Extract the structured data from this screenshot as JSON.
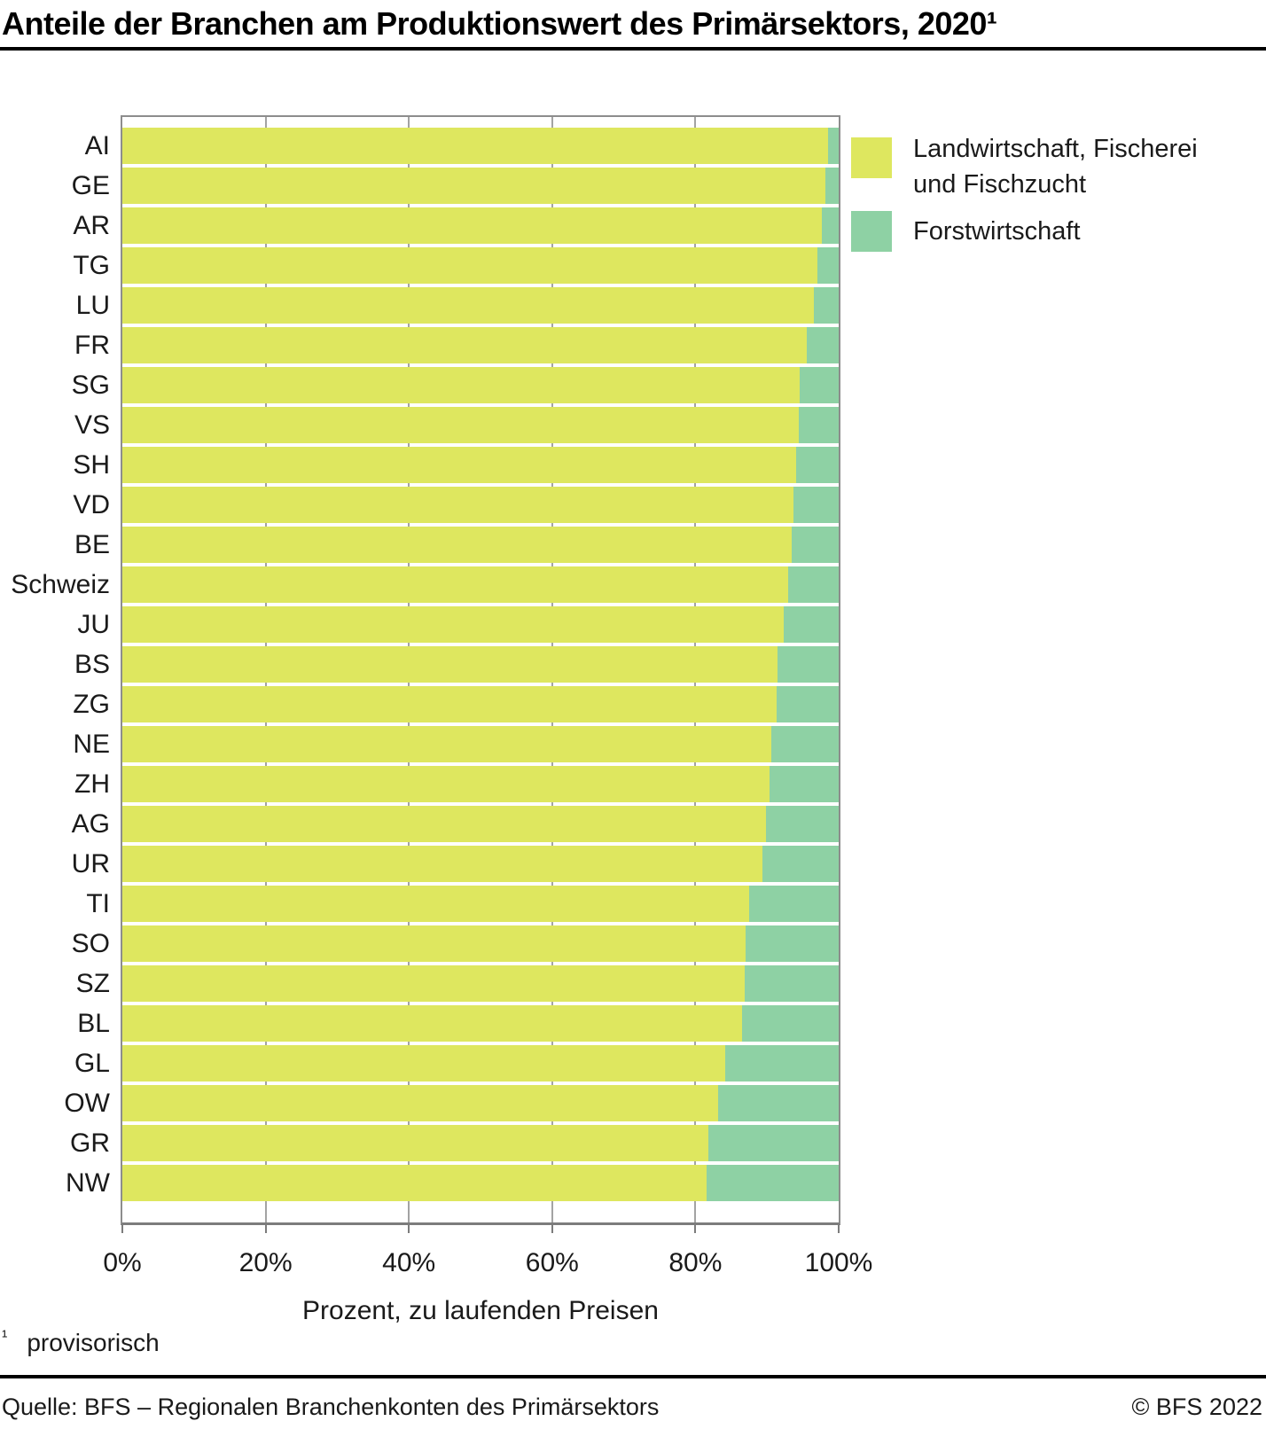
{
  "header": {
    "title": "Anteile der Branchen am Produktionswert des Primärsektors, 2020¹"
  },
  "chart_data": {
    "type": "bar",
    "orientation": "horizontal",
    "stacked": true,
    "unit": "percent",
    "title": "Anteile der Branchen am Produktionswert des Primärsektors, 2020¹",
    "xlabel": "Prozent, zu laufenden Preisen",
    "xlim": [
      0,
      100
    ],
    "grid": true,
    "legend_position": "top-right",
    "categories": [
      "AI",
      "GE",
      "AR",
      "TG",
      "LU",
      "FR",
      "SG",
      "VS",
      "SH",
      "VD",
      "BE",
      "Schweiz",
      "JU",
      "BS",
      "ZG",
      "NE",
      "ZH",
      "AG",
      "UR",
      "TI",
      "SO",
      "SZ",
      "BL",
      "GL",
      "OW",
      "GR",
      "NW"
    ],
    "series": [
      {
        "name": "Landwirtschaft, Fischerei und Fischzucht",
        "color": "#dee75f",
        "values": [
          98.5,
          98.2,
          97.7,
          97.0,
          96.5,
          95.6,
          94.5,
          94.4,
          94.1,
          93.7,
          93.4,
          92.9,
          92.3,
          91.4,
          91.3,
          90.6,
          90.3,
          89.9,
          89.3,
          87.5,
          87.0,
          86.9,
          86.5,
          84.1,
          83.2,
          81.8,
          81.6
        ]
      },
      {
        "name": "Forstwirtschaft",
        "color": "#8ed1a4",
        "values": [
          1.5,
          1.8,
          2.3,
          3.0,
          3.5,
          4.4,
          5.5,
          5.6,
          5.9,
          6.3,
          6.6,
          7.1,
          7.7,
          8.6,
          8.7,
          9.4,
          9.7,
          10.1,
          10.7,
          12.5,
          13.0,
          13.1,
          13.5,
          15.9,
          16.8,
          18.2,
          18.4
        ]
      }
    ],
    "x_ticks": [
      {
        "value": 0,
        "label": "0%"
      },
      {
        "value": 20,
        "label": "20%"
      },
      {
        "value": 40,
        "label": "40%"
      },
      {
        "value": 60,
        "label": "60%"
      },
      {
        "value": 80,
        "label": "80%"
      },
      {
        "value": 100,
        "label": "100%"
      }
    ]
  },
  "footnote": {
    "marker": "¹",
    "text": "provisorisch"
  },
  "footer": {
    "source": "Quelle: BFS – Regionalen Branchenkonten des Primärsektors",
    "copyright": "© BFS 2022"
  }
}
